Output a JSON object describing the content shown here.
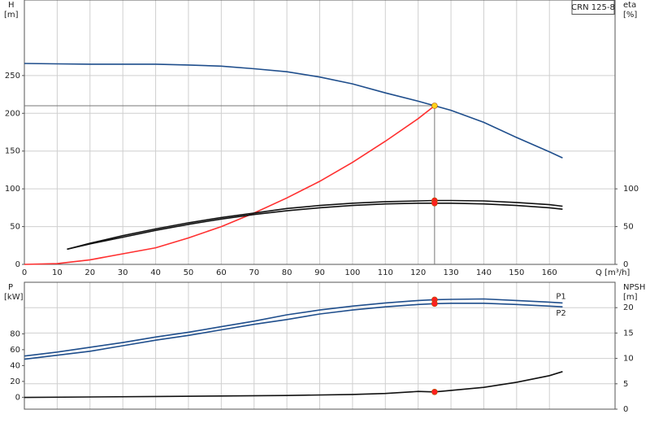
{
  "chart_data": [
    {
      "type": "line",
      "title": "CRN 125-8",
      "ylabel": "H",
      "yunit": "[m]",
      "y2label": "eta",
      "y2unit": "[%]",
      "xlabel": "Q [m³/h]",
      "xlim": [
        0,
        180
      ],
      "xticks": [
        0,
        10,
        20,
        30,
        40,
        50,
        60,
        70,
        80,
        90,
        100,
        110,
        120,
        130,
        140,
        150,
        160
      ],
      "ylim": [
        0,
        350
      ],
      "yticks": [
        0,
        50,
        100,
        150,
        200,
        250
      ],
      "y2lim": [
        0,
        350
      ],
      "y2ticks": [
        0,
        50,
        100
      ],
      "grid": "y",
      "series": [
        {
          "color": "#1f4e8c",
          "x": [
            0,
            10,
            20,
            40,
            50,
            60,
            70,
            80,
            90,
            100,
            110,
            120,
            125,
            130,
            140,
            150,
            160,
            164
          ],
          "values": [
            266,
            265.5,
            265,
            265,
            264,
            262.5,
            259,
            255,
            248,
            239,
            227,
            216,
            210,
            204,
            188,
            168,
            149,
            141
          ]
        },
        {
          "color": "#ff3030",
          "x": [
            0,
            10,
            20,
            30,
            40,
            50,
            60,
            70,
            80,
            90,
            100,
            110,
            120,
            125
          ],
          "values": [
            0,
            1,
            6,
            14,
            22,
            35,
            50,
            68,
            88,
            110,
            135,
            163,
            193,
            210
          ]
        },
        {
          "color": "#111111",
          "axis": "y2",
          "x": [
            13,
            20,
            30,
            40,
            50,
            60,
            70,
            80,
            90,
            100,
            110,
            120,
            125,
            130,
            140,
            150,
            160,
            164
          ],
          "values": [
            20,
            28,
            38,
            47,
            55,
            62,
            68,
            74,
            78,
            81,
            83,
            84,
            84.5,
            84.5,
            84,
            82,
            79,
            77
          ]
        },
        {
          "color": "#111111",
          "axis": "y2",
          "x": [
            13,
            20,
            30,
            40,
            50,
            60,
            70,
            80,
            90,
            100,
            110,
            120,
            125,
            130,
            140,
            150,
            160,
            164
          ],
          "values": [
            20,
            27,
            36,
            45,
            53,
            60,
            66,
            71,
            75,
            78,
            80,
            81,
            81,
            81,
            80,
            78,
            75,
            73
          ]
        }
      ],
      "points": [
        {
          "x": 125,
          "y": 210,
          "color": "#ffd21a"
        },
        {
          "x": 125,
          "y": 84.5,
          "color": "#ff2020",
          "axis": "y2"
        },
        {
          "x": 125,
          "y": 81,
          "color": "#ff2020",
          "axis": "y2"
        }
      ]
    },
    {
      "type": "line",
      "ylabel": "P",
      "yunit": "[kW]",
      "y2label": "NPSH",
      "y2unit": "[m]",
      "xlim": [
        0,
        180
      ],
      "ylim": [
        -15,
        145
      ],
      "yticks": [
        0,
        20,
        40,
        60,
        80
      ],
      "y2lim": [
        0,
        25
      ],
      "y2ticks": [
        0,
        5,
        10,
        15,
        20
      ],
      "grid": "y2",
      "series": [
        {
          "name": "P1",
          "color": "#1f4e8c",
          "x": [
            0,
            10,
            20,
            30,
            40,
            50,
            60,
            70,
            80,
            90,
            100,
            110,
            120,
            125,
            130,
            140,
            150,
            160,
            164
          ],
          "values": [
            52,
            57,
            63,
            69,
            76,
            82,
            89,
            96,
            104,
            110,
            115,
            119,
            122,
            123,
            123.5,
            124,
            122,
            120,
            119
          ]
        },
        {
          "name": "P2",
          "color": "#1f4e8c",
          "x": [
            0,
            10,
            20,
            30,
            40,
            50,
            60,
            70,
            80,
            90,
            100,
            110,
            120,
            125,
            130,
            140,
            150,
            160,
            164
          ],
          "values": [
            48,
            53,
            58,
            65,
            72,
            78,
            85,
            92,
            98,
            105,
            110,
            114,
            117,
            118,
            118.5,
            118.5,
            117,
            115,
            114
          ]
        },
        {
          "color": "#111111",
          "axis": "y2",
          "x": [
            0,
            20,
            40,
            60,
            80,
            100,
            110,
            120,
            125,
            130,
            140,
            150,
            160,
            164
          ],
          "values": [
            2.3,
            2.4,
            2.5,
            2.6,
            2.7,
            2.9,
            3.1,
            3.5,
            3.4,
            3.7,
            4.3,
            5.3,
            6.6,
            7.4
          ]
        }
      ],
      "points": [
        {
          "x": 125,
          "y": 123,
          "color": "#ff2020"
        },
        {
          "x": 125,
          "y": 118,
          "color": "#ff2020"
        },
        {
          "x": 125,
          "y": 3.4,
          "color": "#ff2020",
          "axis": "y2"
        }
      ]
    }
  ]
}
